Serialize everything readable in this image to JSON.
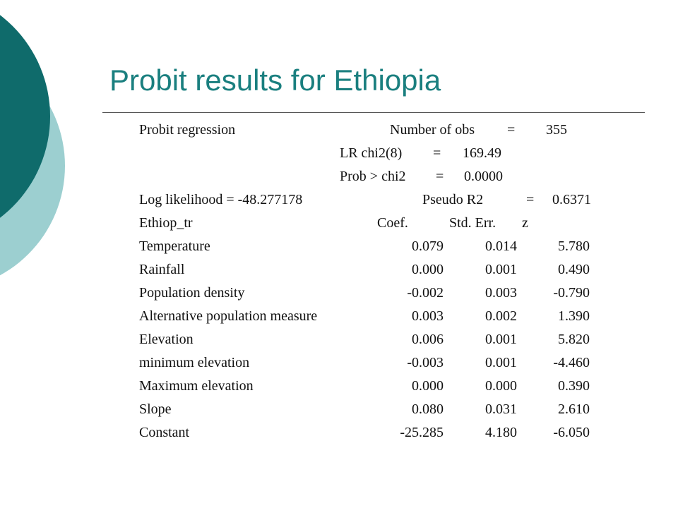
{
  "slide": {
    "title": "Probit results for Ethiopia",
    "accent_colors": {
      "dark_teal": "#0f6b6b",
      "light_teal": "#9ccfd0",
      "title": "#1a7f7f"
    }
  },
  "header": {
    "model": "Probit regression",
    "nobs_label": "Number of obs",
    "nobs_eq": "=",
    "nobs_value": "355",
    "lr_label": "LR chi2(8)",
    "lr_eq": "=",
    "lr_value": "169.49",
    "prob_label": "Prob > chi2",
    "prob_eq": "=",
    "prob_value": "0.0000",
    "loglik": "Log likelihood = -48.277178",
    "pseudo_label": "Pseudo R2",
    "pseudo_eq": "=",
    "pseudo_value": "0.6371"
  },
  "table": {
    "columns": [
      "Ethiop_tr",
      "Coef.",
      "Std. Err.",
      "z"
    ],
    "rows": [
      {
        "name": "Temperature",
        "coef": "0.079",
        "se": "0.014",
        "z": "5.780"
      },
      {
        "name": "Rainfall",
        "coef": "0.000",
        "se": "0.001",
        "z": "0.490"
      },
      {
        "name": "Population density",
        "coef": "-0.002",
        "se": "0.003",
        "z": "-0.790"
      },
      {
        "name": "Alternative population measure",
        "coef": "0.003",
        "se": "0.002",
        "z": "1.390"
      },
      {
        "name": "Elevation",
        "coef": "0.006",
        "se": "0.001",
        "z": "5.820"
      },
      {
        "name": "minimum elevation",
        "coef": "-0.003",
        "se": "0.001",
        "z": "-4.460"
      },
      {
        "name": "Maximum elevation",
        "coef": "0.000",
        "se": "0.000",
        "z": "0.390"
      },
      {
        "name": "Slope",
        "coef": "0.080",
        "se": "0.031",
        "z": "2.610"
      },
      {
        "name": "Constant",
        "coef": "-25.285",
        "se": "4.180",
        "z": "-6.050"
      }
    ]
  }
}
